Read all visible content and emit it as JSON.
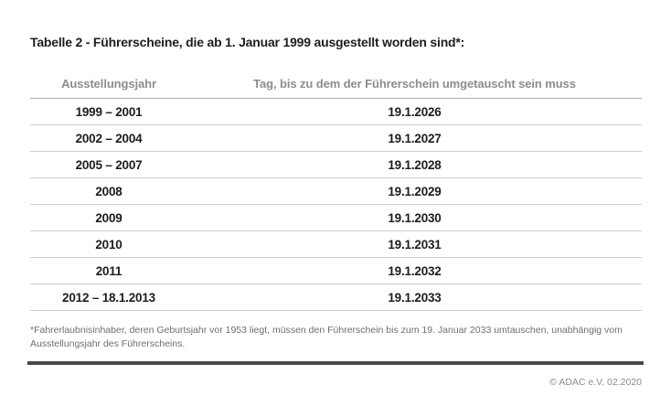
{
  "title": "Tabelle 2 - Führerscheine, die ab 1. Januar 1999 ausgestellt worden sind*:",
  "table": {
    "columns": [
      {
        "label": "Ausstellungsjahr"
      },
      {
        "label": "Tag, bis zu dem der Führerschein umgetauscht sein muss"
      }
    ],
    "rows": [
      {
        "issue_year": "1999 – 2001",
        "deadline": "19.1.2026"
      },
      {
        "issue_year": "2002 – 2004",
        "deadline": "19.1.2027"
      },
      {
        "issue_year": "2005 – 2007",
        "deadline": "19.1.2028"
      },
      {
        "issue_year": "2008",
        "deadline": "19.1.2029"
      },
      {
        "issue_year": "2009",
        "deadline": "19.1.2030"
      },
      {
        "issue_year": "2010",
        "deadline": "19.1.2031"
      },
      {
        "issue_year": "2011",
        "deadline": "19.1.2032"
      },
      {
        "issue_year": "2012 – 18.1.2013",
        "deadline": "19.1.2033"
      }
    ]
  },
  "footnote": "*Fahrerlaubnisinhaber, deren Geburtsjahr vor 1953 liegt, müssen den Führerschein bis zum 19. Januar 2033 umtauschen, unabhängig vom Ausstellungsjahr des Führerscheins.",
  "copyright": "© ADAC e.V. 02.2020",
  "colors": {
    "text": "#1d1d1b",
    "header_text": "#8d8d8d",
    "row_line": "#cccccc",
    "header_line": "#adadad",
    "footnote_text": "#6e6e6e",
    "divider_bar": "#494a4c",
    "copyright_text": "#8a8b8d"
  }
}
